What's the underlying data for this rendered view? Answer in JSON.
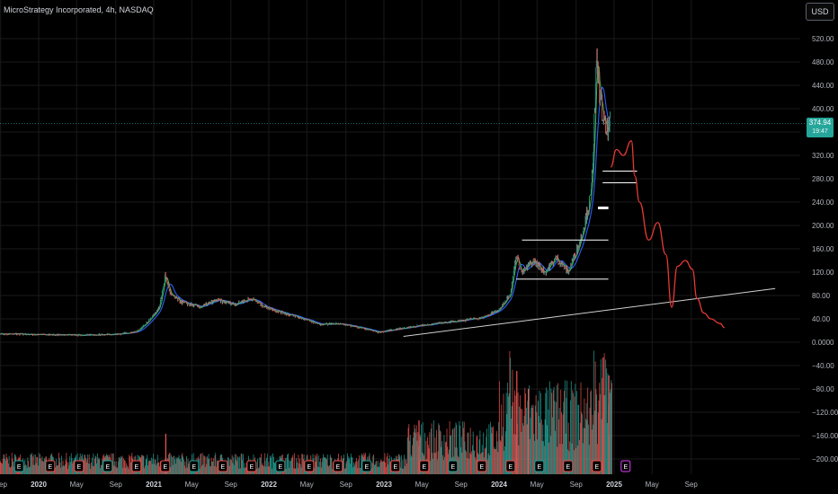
{
  "header": {
    "title": "MicroStrategy Incorporated, 4h, NASDAQ",
    "currency_button": "USD"
  },
  "last_price": {
    "value": "374.94",
    "countdown": "19:47"
  },
  "colors": {
    "background": "#000000",
    "grid": "#1a1a1a",
    "up": "#26a69a",
    "down": "#ef5350",
    "forecast": "#e53935",
    "trendline": "#d0d0d0",
    "level": "#ffffff",
    "ma_fast": "#4caf50",
    "ma_slow": "#2962ff"
  },
  "chart_data": {
    "type": "line",
    "title": "MicroStrategy Incorporated, 4h, NASDAQ",
    "xlabel": "",
    "ylabel": "",
    "ylim": [
      -220,
      550
    ],
    "y_ticks": [
      "520.00",
      "480.00",
      "440.00",
      "400.00",
      "360.00",
      "320.00",
      "280.00",
      "240.00",
      "200.00",
      "160.00",
      "120.00",
      "80.00",
      "40.00",
      "0.0000",
      "−40.00",
      "−80.00",
      "−120.00",
      "−160.00",
      "−200.00"
    ],
    "x_ticks": [
      {
        "label": "Sep",
        "t": 2019.67,
        "bold": false
      },
      {
        "label": "2020",
        "t": 2020.0,
        "bold": true
      },
      {
        "label": "May",
        "t": 2020.33,
        "bold": false
      },
      {
        "label": "Sep",
        "t": 2020.67,
        "bold": false
      },
      {
        "label": "2021",
        "t": 2021.0,
        "bold": true
      },
      {
        "label": "May",
        "t": 2021.33,
        "bold": false
      },
      {
        "label": "Sep",
        "t": 2021.67,
        "bold": false
      },
      {
        "label": "2022",
        "t": 2022.0,
        "bold": true
      },
      {
        "label": "May",
        "t": 2022.33,
        "bold": false
      },
      {
        "label": "Sep",
        "t": 2022.67,
        "bold": false
      },
      {
        "label": "2023",
        "t": 2023.0,
        "bold": true
      },
      {
        "label": "May",
        "t": 2023.33,
        "bold": false
      },
      {
        "label": "Sep",
        "t": 2023.67,
        "bold": false
      },
      {
        "label": "2024",
        "t": 2024.0,
        "bold": true
      },
      {
        "label": "May",
        "t": 2024.33,
        "bold": false
      },
      {
        "label": "Sep",
        "t": 2024.67,
        "bold": false
      },
      {
        "label": "2025",
        "t": 2025.0,
        "bold": true
      },
      {
        "label": "May",
        "t": 2025.33,
        "bold": false
      },
      {
        "label": "Sep",
        "t": 2025.67,
        "bold": false
      }
    ],
    "series": [
      {
        "kind": "price",
        "x": [
          2019.5,
          2019.8,
          2020.1,
          2020.4,
          2020.7,
          2020.85,
          2020.95,
          2021.05,
          2021.1,
          2021.15,
          2021.25,
          2021.4,
          2021.55,
          2021.7,
          2021.85,
          2021.95,
          2022.1,
          2022.3,
          2022.45,
          2022.6,
          2022.8,
          2022.95,
          2023.1,
          2023.3,
          2023.5,
          2023.7,
          2023.85,
          2024.0,
          2024.1,
          2024.15,
          2024.2,
          2024.3,
          2024.4,
          2024.5,
          2024.6,
          2024.7,
          2024.75,
          2024.8,
          2024.85,
          2024.88,
          2024.9,
          2024.93,
          2024.97
        ],
        "y": [
          14,
          14,
          13,
          12,
          14,
          18,
          35,
          60,
          115,
          80,
          68,
          60,
          72,
          65,
          75,
          62,
          52,
          40,
          30,
          32,
          25,
          17,
          22,
          28,
          33,
          38,
          42,
          55,
          85,
          150,
          118,
          140,
          120,
          145,
          120,
          170,
          210,
          250,
          480,
          420,
          390,
          360,
          375
        ]
      },
      {
        "kind": "forecast",
        "x": [
          2024.97,
          2025.02,
          2025.08,
          2025.15,
          2025.18,
          2025.22,
          2025.3,
          2025.38,
          2025.45,
          2025.5,
          2025.55,
          2025.62,
          2025.68,
          2025.72,
          2025.78,
          2025.84,
          2025.92,
          2025.96
        ],
        "y": [
          300,
          330,
          320,
          345,
          285,
          240,
          175,
          205,
          150,
          60,
          130,
          140,
          125,
          75,
          50,
          40,
          32,
          25
        ]
      },
      {
        "kind": "trendline",
        "x": [
          2023.17,
          2026.4
        ],
        "y": [
          10,
          92
        ]
      }
    ],
    "levels": [
      {
        "value": 293,
        "x_start": 2024.9,
        "x_end": 2025.2
      },
      {
        "value": 273,
        "x_start": 2024.9,
        "x_end": 2025.2
      },
      {
        "value": 230,
        "x_start": 2024.86,
        "x_end": 2024.95
      },
      {
        "value": 175,
        "x_start": 2024.2,
        "x_end": 2024.95
      },
      {
        "value": 108,
        "x_start": 2024.15,
        "x_end": 2024.95
      }
    ],
    "earnings_markers_x": [
      2019.83,
      2020.1,
      2020.35,
      2020.6,
      2020.85,
      2021.1,
      2021.35,
      2021.6,
      2021.85,
      2022.1,
      2022.35,
      2022.6,
      2022.85,
      2023.1,
      2023.35,
      2023.6,
      2023.85,
      2024.1,
      2024.35,
      2024.6,
      2024.85,
      2025.1
    ],
    "earnings_label": "E",
    "grid": true,
    "legend": "none"
  }
}
